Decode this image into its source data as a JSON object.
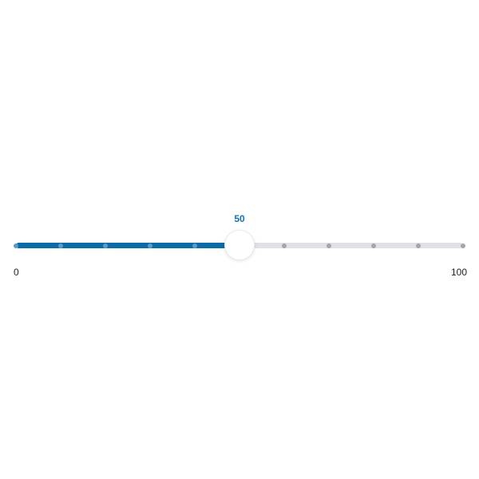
{
  "slider": {
    "min": 0,
    "max": 100,
    "step": 10,
    "value": 50,
    "value_label": "50",
    "min_label": "0",
    "max_label": "100",
    "colors": {
      "track": "#e1dfe8",
      "fill": "#0b6aa8",
      "tick_inactive": "#a5a3ac",
      "tick_active": "#5b9ac8",
      "value_text": "#1670ad"
    }
  }
}
